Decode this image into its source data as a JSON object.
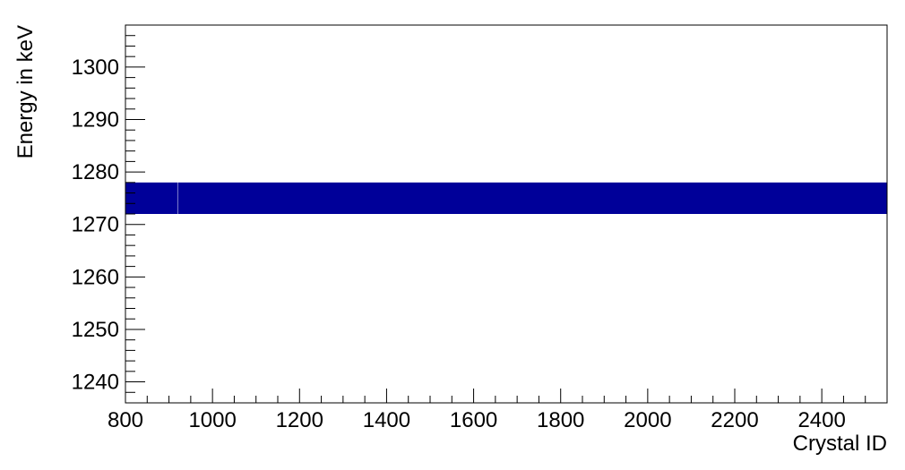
{
  "chart_data": {
    "type": "heatmap",
    "xlabel": "Crystal ID",
    "ylabel": "Energy in keV",
    "xlim": [
      800,
      2550
    ],
    "ylim": [
      1236,
      1308
    ],
    "x_ticks": [
      "800",
      "1000",
      "1200",
      "1400",
      "1600",
      "1800",
      "2000",
      "2200",
      "2400"
    ],
    "y_ticks": [
      "1240",
      "1250",
      "1260",
      "1270",
      "1280",
      "1290",
      "1300"
    ],
    "grid": false,
    "colors": {
      "band": "#000099",
      "axis": "#000000",
      "background": "#ffffff"
    },
    "bands": [
      {
        "x": [
          800,
          920
        ],
        "y": [
          1272,
          1278
        ]
      },
      {
        "x": [
          921,
          2550
        ],
        "y": [
          1272,
          1278
        ]
      }
    ]
  }
}
